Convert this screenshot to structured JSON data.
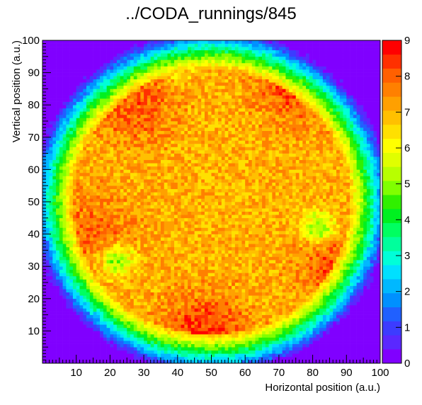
{
  "chart_data": {
    "type": "heatmap",
    "title": "../CODA_runnings/845",
    "xlabel": "Horizontal position (a.u.)",
    "ylabel": "Vertical position (a.u.)",
    "xlim": [
      0,
      100
    ],
    "ylim": [
      0,
      100
    ],
    "x_ticks": [
      "10",
      "20",
      "30",
      "40",
      "50",
      "60",
      "70",
      "80",
      "90",
      "100"
    ],
    "y_ticks": [
      "10",
      "20",
      "30",
      "40",
      "50",
      "60",
      "70",
      "80",
      "90",
      "100"
    ],
    "colorbar": {
      "min": 0,
      "max": 9,
      "ticks": [
        "0",
        "1",
        "2",
        "3",
        "4",
        "5",
        "6",
        "7",
        "8",
        "9"
      ],
      "colors": [
        "#8000ff",
        "#5a28ff",
        "#3c3cff",
        "#2060ff",
        "#0090ff",
        "#00b8ff",
        "#00e0ff",
        "#00ffd8",
        "#00ff9c",
        "#00ff60",
        "#00f020",
        "#30f000",
        "#80ff00",
        "#b8ff00",
        "#e0ff00",
        "#ffff00",
        "#ffe000",
        "#ffc000",
        "#ffa000",
        "#ff8000",
        "#ff6000",
        "#ff3000",
        "#ff0000"
      ]
    },
    "description_values": {
      "center": [
        50,
        50
      ],
      "beam_edge_radius": 47,
      "plateau_level": 7,
      "hotspots": [
        {
          "x": 48,
          "y": 8,
          "level": 8.6
        },
        {
          "x": 77,
          "y": 88,
          "level": 8.5
        },
        {
          "x": 28,
          "y": 80,
          "level": 8.0
        },
        {
          "x": 88,
          "y": 30,
          "level": 8.2
        },
        {
          "x": 15,
          "y": 40,
          "level": 7.9
        }
      ],
      "cold_streaks": [
        {
          "x": 22,
          "y": 32,
          "level": 4.5
        },
        {
          "x": 82,
          "y": 42,
          "level": 4.5
        },
        {
          "x": 40,
          "y": 94,
          "level": 4.2
        }
      ]
    }
  }
}
